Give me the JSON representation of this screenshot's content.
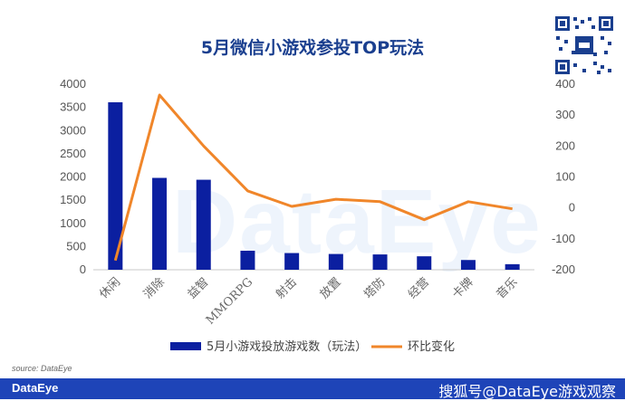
{
  "chart_data": {
    "type": "bar+line",
    "title": "5月微信小游戏参投TOP玩法",
    "categories": [
      "休闲",
      "消除",
      "益智",
      "MMORPG",
      "射击",
      "放置",
      "塔防",
      "经营",
      "卡牌",
      "音乐"
    ],
    "series": [
      {
        "name": "5月小游戏投放游戏数（玩法）",
        "type": "bar",
        "axis": "left",
        "color": "#0b1fa0",
        "values": [
          3610,
          1980,
          1940,
          410,
          360,
          340,
          330,
          290,
          210,
          120
        ]
      },
      {
        "name": "环比变化",
        "type": "line",
        "axis": "right",
        "color": "#f0862a",
        "values": [
          -170,
          365,
          200,
          55,
          5,
          28,
          20,
          -38,
          20,
          -3
        ]
      }
    ],
    "y_left": {
      "ylim": [
        0,
        4000
      ],
      "ticks": [
        "0",
        "500",
        "1000",
        "1500",
        "2000",
        "2500",
        "3000",
        "3500",
        "4000"
      ]
    },
    "y_right": {
      "ylim": [
        -200,
        400
      ],
      "ticks": [
        "-200",
        "-100",
        "0",
        "100",
        "200",
        "300",
        "400"
      ]
    },
    "legend_position": "bottom",
    "grid": false
  },
  "watermark": "DataEye",
  "source": "source: DataEye",
  "footer": {
    "brand": "DataEye",
    "handle": "搜狐号@DataEye游戏观察",
    "color": "#1e44b8"
  },
  "qr_icon": "qr-code-icon"
}
